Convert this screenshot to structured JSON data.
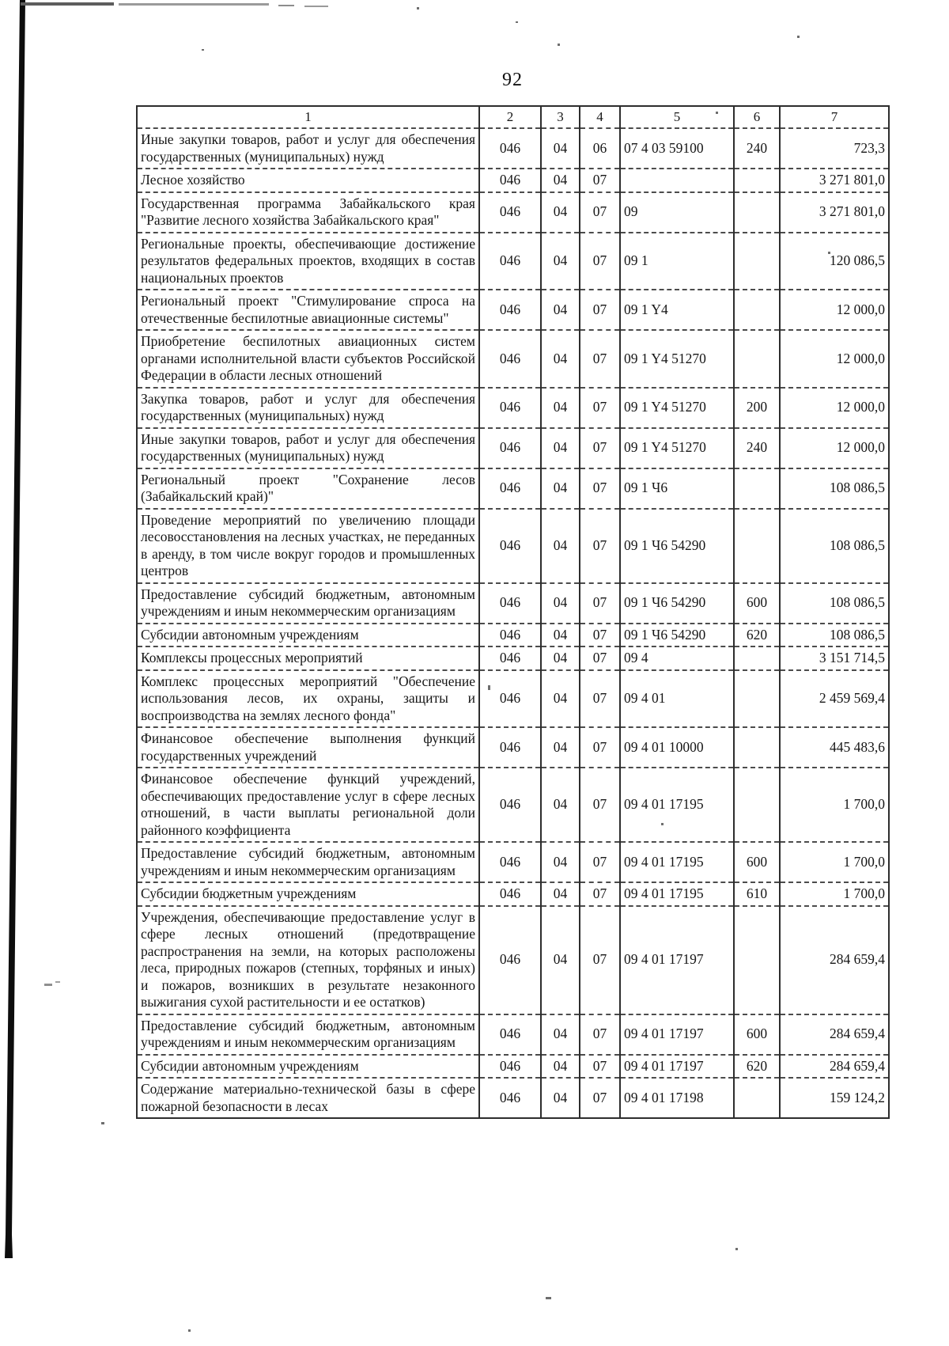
{
  "page_number": "92",
  "table": {
    "headers": [
      "1",
      "2",
      "3",
      "4",
      "5",
      "6",
      "7"
    ],
    "rows": [
      [
        "Иные закупки товаров, работ и услуг для обеспечения государственных (муниципальных) нужд",
        "046",
        "04",
        "06",
        "07 4 03 59100",
        "240",
        "723,3"
      ],
      [
        "Лесное хозяйство",
        "046",
        "04",
        "07",
        "",
        "",
        "3 271 801,0"
      ],
      [
        "Государственная программа Забайкальского края \"Развитие лесного хозяйства Забайкальского края\"",
        "046",
        "04",
        "07",
        "09",
        "",
        "3 271 801,0"
      ],
      [
        "Региональные проекты, обеспечивающие достижение результатов федеральных проектов, входящих в состав национальных проектов",
        "046",
        "04",
        "07",
        "09 1",
        "",
        "120 086,5"
      ],
      [
        "Региональный проект \"Стимулирование спроса на отечественные беспилотные авиационные системы\"",
        "046",
        "04",
        "07",
        "09 1 Y4",
        "",
        "12 000,0"
      ],
      [
        "Приобретение беспилотных авиационных систем органами исполнительной власти субъектов Российской Федерации в области лесных отношений",
        "046",
        "04",
        "07",
        "09 1 Y4 51270",
        "",
        "12 000,0"
      ],
      [
        "Закупка товаров, работ и услуг для обеспечения государственных (муниципальных) нужд",
        "046",
        "04",
        "07",
        "09 1 Y4 51270",
        "200",
        "12 000,0"
      ],
      [
        "Иные закупки товаров, работ и услуг для обеспечения государственных (муниципальных) нужд",
        "046",
        "04",
        "07",
        "09 1 Y4 51270",
        "240",
        "12 000,0"
      ],
      [
        "Региональный проект \"Сохранение лесов (Забайкальский край)\"",
        "046",
        "04",
        "07",
        "09 1 Ч6",
        "",
        "108 086,5"
      ],
      [
        "Проведение мероприятий по увеличению площади лесовосстановления на лесных участках, не переданных в аренду, в том числе вокруг городов и промышленных центров",
        "046",
        "04",
        "07",
        "09 1 Ч6 54290",
        "",
        "108 086,5"
      ],
      [
        "Предоставление субсидий бюджетным, автономным учреждениям и иным некоммерческим организациям",
        "046",
        "04",
        "07",
        "09 1 Ч6 54290",
        "600",
        "108 086,5"
      ],
      [
        "Субсидии автономным учреждениям",
        "046",
        "04",
        "07",
        "09 1 Ч6 54290",
        "620",
        "108 086,5"
      ],
      [
        "Комплексы процессных мероприятий",
        "046",
        "04",
        "07",
        "09 4",
        "",
        "3 151 714,5"
      ],
      [
        "Комплекс процессных мероприятий \"Обеспечение использования лесов, их охраны, защиты и воспроизводства на землях лесного фонда\"",
        "046",
        "04",
        "07",
        "09 4 01",
        "",
        "2 459 569,4"
      ],
      [
        "Финансовое обеспечение выполнения функций государственных учреждений",
        "046",
        "04",
        "07",
        "09 4 01 10000",
        "",
        "445 483,6"
      ],
      [
        "Финансовое обеспечение функций учреждений, обеспечивающих предоставление услуг в сфере лесных отношений, в части выплаты региональной доли районного коэффициента",
        "046",
        "04",
        "07",
        "09 4 01 17195",
        "",
        "1 700,0"
      ],
      [
        "Предоставление субсидий бюджетным, автономным учреждениям и иным некоммерческим организациям",
        "046",
        "04",
        "07",
        "09 4 01 17195",
        "600",
        "1 700,0"
      ],
      [
        "Субсидии бюджетным учреждениям",
        "046",
        "04",
        "07",
        "09 4 01 17195",
        "610",
        "1 700,0"
      ],
      [
        "Учреждения, обеспечивающие предоставление услуг в сфере лесных отношений (предотвращение распространения на земли, на которых расположены леса, природных пожаров (степных, торфяных и иных) и пожаров, возникших в результате незаконного выжигания сухой растительности и ее остатков)",
        "046",
        "04",
        "07",
        "09 4 01 17197",
        "",
        "284 659,4"
      ],
      [
        "Предоставление субсидий бюджетным, автономным учреждениям и иным некоммерческим организациям",
        "046",
        "04",
        "07",
        "09 4 01 17197",
        "600",
        "284 659,4"
      ],
      [
        "Субсидии автономным учреждениям",
        "046",
        "04",
        "07",
        "09 4 01 17197",
        "620",
        "284 659,4"
      ],
      [
        "Содержание материально-технической базы в сфере пожарной безопасности в лесах",
        "046",
        "04",
        "07",
        "09 4 01 17198",
        "",
        "159 124,2"
      ]
    ]
  }
}
